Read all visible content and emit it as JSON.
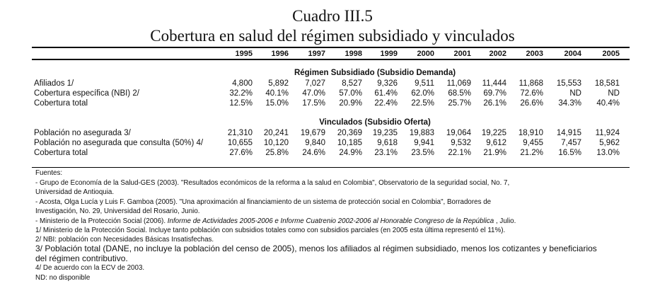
{
  "title": "Cuadro III.5",
  "subtitle": "Cobertura en salud del régimen subsidiado y vinculados",
  "years": [
    "1995",
    "1996",
    "1997",
    "1998",
    "1999",
    "2000",
    "2001",
    "2002",
    "2003",
    "2004",
    "2005"
  ],
  "sections": [
    {
      "heading": "Régimen Subsidiado (Subsidio Demanda)",
      "rows": [
        {
          "label": "Afiliados  1/",
          "values": [
            "4,800",
            "5,892",
            "7,027",
            "8,527",
            "9,326",
            "9,511",
            "11,069",
            "11,444",
            "11,868",
            "15,553",
            "18,581"
          ]
        },
        {
          "label": "Cobertura específica (NBI) 2/",
          "values": [
            "32.2%",
            "40.1%",
            "47.0%",
            "57.0%",
            "61.4%",
            "62.0%",
            "68.5%",
            "69.7%",
            "72.6%",
            "ND",
            "ND"
          ]
        },
        {
          "label": "Cobertura total",
          "values": [
            "12.5%",
            "15.0%",
            "17.5%",
            "20.9%",
            "22.4%",
            "22.5%",
            "25.7%",
            "26.1%",
            "26.6%",
            "34.3%",
            "40.4%"
          ]
        }
      ]
    },
    {
      "heading": "Vinculados (Subsidio Oferta)",
      "rows": [
        {
          "label": "Población no asegurada  3/",
          "values": [
            "21,310",
            "20,241",
            "19,679",
            "20,369",
            "19,235",
            "19,883",
            "19,064",
            "19,225",
            "18,910",
            "14,915",
            "11,924"
          ]
        },
        {
          "label": "Población no asegurada que consulta (50%)  4/",
          "values": [
            "10,655",
            "10,120",
            "9,840",
            "10,185",
            "9,618",
            "9,941",
            "9,532",
            "9,612",
            "9,455",
            "7,457",
            "5,962"
          ]
        },
        {
          "label": "Cobertura total",
          "values": [
            "27.6%",
            "25.8%",
            "24.6%",
            "24.9%",
            "23.1%",
            "23.5%",
            "22.1%",
            "21.9%",
            "21.2%",
            "16.5%",
            "13.0%"
          ]
        }
      ]
    }
  ],
  "notes": {
    "fuentes": "Fuentes:",
    "n1a": "- Grupo de Economía de la Salud-GES (2003). \"Resultados económicos de la reforma a la salud en Colombia\", Observatorio de la seguridad social, No. 7,",
    "n1b": "Universidad de Antioquia.",
    "n2a": "- Acosta, Olga Lucía y Luis F. Gamboa (2005). \"Una aproximación al financiamiento de un sistema de protección social en Colombia\", Borradores de",
    "n2b": "Investigación, No. 29, Universidad del Rosario, Junio.",
    "n3_pre": "- Ministerio de la Protección Social (2006). ",
    "n3_it": "Informe de Actividades 2005-2006 e Informe Cuatrenio 2002-2006 al Honorable Congreso de la República",
    "n3_post": " , Julio.",
    "f1": "1/ Ministerio de la Protección Social. Incluye tanto población con subsidios totales como con subsidios parciales (en 2005 esta última representó el 11%).",
    "f2": "2/ NBI: población con Necesidades Básicas Insatisfechas.",
    "f3a": "3/ Población total (DANE, no incluye la población del censo de 2005), menos los afiliados al régimen subsidiado, menos los cotizantes y beneficiarios",
    "f3b": "del régimen contributivo.",
    "f4": "4/ De acuerdo con la ECV de 2003.",
    "nd": "ND: no disponible"
  }
}
